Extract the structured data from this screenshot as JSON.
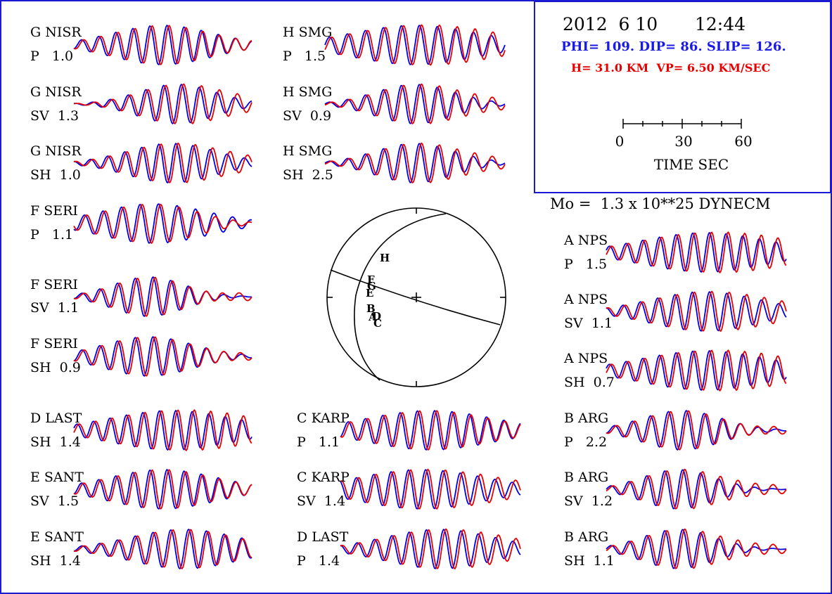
{
  "header": {
    "date": "2012  6 10",
    "time": "12:44",
    "mechanism": "PHI= 109. DIP= 86. SLIP= 126.",
    "depth_velocity": "H= 31.0 KM  VP= 6.50 KM/SEC",
    "moment": "Mo =  1.3 x 10**25 DYNECM"
  },
  "time_scale": {
    "ticks": [
      "0",
      "30",
      "60"
    ],
    "label": "TIME  SEC"
  },
  "colors": {
    "frame": "#1a1ad0",
    "observed": "#0000e6",
    "synthetic": "#e60000",
    "mechanism_text": "#1a1ae6",
    "depth_text": "#e60000",
    "beachball": "#000000"
  },
  "chart_data": {
    "type": "line",
    "series_colors": {
      "observed": "#0000e6",
      "synthetic": "#e60000"
    },
    "traces": [
      {
        "station": "G NISR",
        "phase_amp": "P   1.0",
        "freq": 0.55,
        "center": 0.5,
        "width": 0.28
      },
      {
        "station": "G NISR",
        "phase_amp": "SV  1.3",
        "freq": 0.5,
        "center": 0.58,
        "width": 0.22
      },
      {
        "station": "G NISR",
        "phase_amp": "SH  1.0",
        "freq": 0.55,
        "center": 0.55,
        "width": 0.25
      },
      {
        "station": "F SERI",
        "phase_amp": "P   1.1",
        "freq": 0.45,
        "center": 0.45,
        "width": 0.3
      },
      {
        "station": "F SERI",
        "phase_amp": "SV  1.1",
        "freq": 0.5,
        "center": 0.42,
        "width": 0.2
      },
      {
        "station": "F SERI",
        "phase_amp": "SH  0.9",
        "freq": 0.5,
        "center": 0.42,
        "width": 0.25
      },
      {
        "station": "D LAST",
        "phase_amp": "SH  1.4",
        "freq": 0.6,
        "center": 0.55,
        "width": 0.35
      },
      {
        "station": "E SANT",
        "phase_amp": "SV  1.5",
        "freq": 0.55,
        "center": 0.5,
        "width": 0.3
      },
      {
        "station": "E SANT",
        "phase_amp": "SH  1.4",
        "freq": 0.5,
        "center": 0.62,
        "width": 0.3
      },
      {
        "station": "H SMG",
        "phase_amp": "P   1.5",
        "freq": 0.5,
        "center": 0.5,
        "width": 0.35
      },
      {
        "station": "H SMG",
        "phase_amp": "SV  0.9",
        "freq": 0.5,
        "center": 0.5,
        "width": 0.22
      },
      {
        "station": "H SMG",
        "phase_amp": "SH  2.5",
        "freq": 0.5,
        "center": 0.5,
        "width": 0.22
      },
      {
        "station": "C KARP",
        "phase_amp": "P   1.1",
        "freq": 0.55,
        "center": 0.5,
        "width": 0.35
      },
      {
        "station": "C KARP",
        "phase_amp": "SV  1.4",
        "freq": 0.55,
        "center": 0.45,
        "width": 0.35
      },
      {
        "station": "D LAST",
        "phase_amp": "P   1.4",
        "freq": 0.55,
        "center": 0.55,
        "width": 0.3
      },
      {
        "station": "A NPS",
        "phase_amp": "P   1.5",
        "freq": 0.6,
        "center": 0.55,
        "width": 0.35
      },
      {
        "station": "A NPS",
        "phase_amp": "SV  1.1",
        "freq": 0.55,
        "center": 0.55,
        "width": 0.3
      },
      {
        "station": "A NPS",
        "phase_amp": "SH  0.7",
        "freq": 0.6,
        "center": 0.55,
        "width": 0.35
      },
      {
        "station": "B ARG",
        "phase_amp": "P   2.2",
        "freq": 0.5,
        "center": 0.42,
        "width": 0.22
      },
      {
        "station": "B ARG",
        "phase_amp": "SV  1.2",
        "freq": 0.5,
        "center": 0.4,
        "width": 0.2
      },
      {
        "station": "B ARG",
        "phase_amp": "SH  1.1",
        "freq": 0.5,
        "center": 0.4,
        "width": 0.2
      }
    ],
    "beachball": {
      "station_letters": [
        "H",
        "F",
        "G",
        "E",
        "B",
        "A",
        "D",
        "C"
      ]
    }
  }
}
